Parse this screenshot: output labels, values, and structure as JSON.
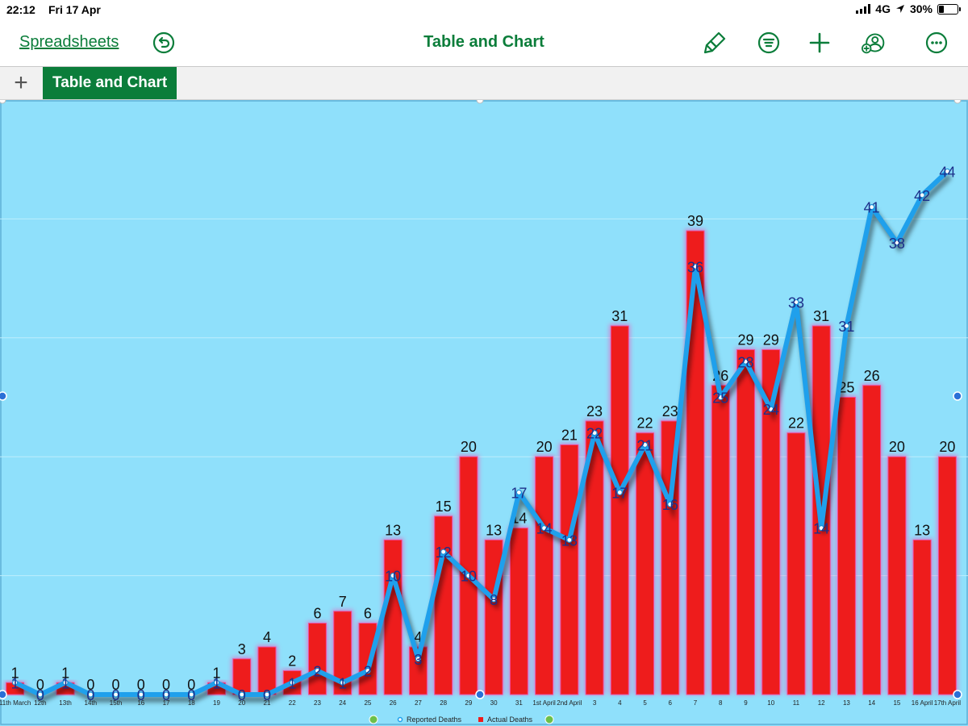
{
  "status_bar": {
    "time": "22:12",
    "date": "Fri 17 Apr",
    "network": "4G",
    "battery": "30%",
    "battery_level": 0.3
  },
  "toolbar": {
    "back_label": "Spreadsheets",
    "title": "Table and Chart"
  },
  "sheet_tabs": [
    {
      "label": "Table and Chart",
      "active": true
    }
  ],
  "icons": [
    "undo-icon",
    "paintbrush-icon",
    "format-list-icon",
    "add-icon",
    "collaborate-icon",
    "more-icon",
    "add-sheet-icon"
  ],
  "colors": {
    "accent": "#0b7d3a",
    "chart_bg": "#8fe0fb",
    "bar": "#ee1c1c",
    "line": "#1fa0ec"
  },
  "chart_data": {
    "type": "bar",
    "categories": [
      "11th March",
      "12th",
      "13th",
      "14th",
      "15th",
      "16",
      "17",
      "18",
      "19",
      "20",
      "21",
      "22",
      "23",
      "24",
      "25",
      "26",
      "27",
      "28",
      "29",
      "30",
      "31",
      "1st April",
      "2nd April",
      "3",
      "4",
      "5",
      "6",
      "7",
      "8",
      "9",
      "10",
      "11",
      "12",
      "13",
      "14",
      "15",
      "16 April",
      "17th April"
    ],
    "series": [
      {
        "name": "Actual Deaths",
        "type": "bar",
        "values": [
          1,
          0,
          1,
          0,
          0,
          0,
          0,
          0,
          1,
          3,
          4,
          2,
          6,
          7,
          6,
          13,
          4,
          15,
          20,
          13,
          14,
          20,
          21,
          23,
          31,
          22,
          23,
          39,
          26,
          29,
          29,
          22,
          31,
          25,
          26,
          20,
          13,
          20
        ]
      },
      {
        "name": "Reported Deaths",
        "type": "line",
        "values": [
          1,
          0,
          1,
          0,
          0,
          0,
          0,
          0,
          1,
          0,
          0,
          1,
          2,
          1,
          2,
          10,
          3,
          12,
          10,
          8,
          17,
          14,
          13,
          22,
          17,
          21,
          16,
          36,
          25,
          28,
          24,
          33,
          14,
          31,
          41,
          38,
          42,
          44
        ]
      }
    ],
    "ylim": [
      0,
      50
    ],
    "grid": true,
    "legend": "bottom",
    "data_labels": true
  }
}
